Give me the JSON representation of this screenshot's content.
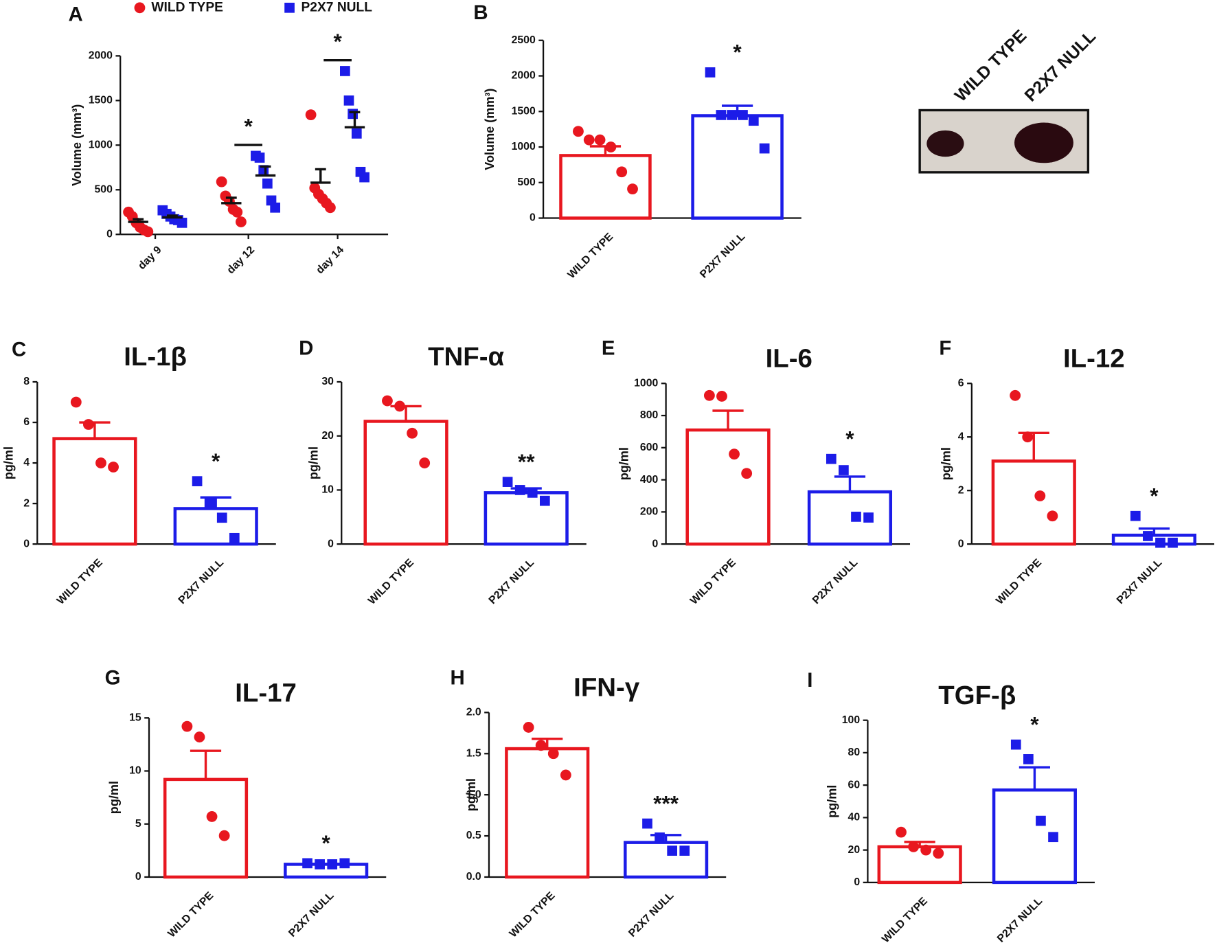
{
  "chart_data": [
    {
      "type": "dot",
      "panel": "A",
      "y_label": "Volume (mm³)",
      "categories": [
        "day 9",
        "day 12",
        "day 14"
      ],
      "ylim": [
        0,
        2000
      ],
      "yticks": [
        0,
        500,
        1000,
        1500,
        2000
      ],
      "significance": [
        null,
        "*",
        "*"
      ],
      "series": [
        {
          "name": "WILD TYPE",
          "color": "#e8171f",
          "marker": "circle",
          "points": [
            [
              250,
              200,
              130,
              80,
              50,
              30
            ],
            [
              590,
              430,
              370,
              280,
              250,
              140
            ],
            [
              1340,
              520,
              450,
              400,
              350,
              300
            ]
          ],
          "means": [
            140,
            350,
            580
          ],
          "sems": [
            30,
            60,
            150
          ]
        },
        {
          "name": "P2X7 NULL",
          "color": "#1c1ce8",
          "marker": "square",
          "points": [
            [
              270,
              230,
              200,
              170,
              160,
              130
            ],
            [
              880,
              860,
              720,
              570,
              380,
              300
            ],
            [
              1830,
              1500,
              1350,
              1130,
              700,
              640
            ]
          ],
          "means": [
            190,
            660,
            1200
          ],
          "sems": [
            20,
            100,
            170
          ]
        }
      ]
    },
    {
      "type": "bar",
      "panel": "B",
      "y_label": "Volume (mm³)",
      "ylim": [
        0,
        2500
      ],
      "yticks": [
        0,
        500,
        1000,
        1500,
        2000,
        2500
      ],
      "significance": [
        null,
        "*"
      ],
      "groups": [
        {
          "name": "WILD TYPE",
          "color": "#e8171f",
          "marker": "circle",
          "points": [
            1220,
            1100,
            1100,
            1000,
            650,
            410
          ],
          "mean": 880,
          "sem": 130
        },
        {
          "name": "P2X7 NULL",
          "color": "#1c1ce8",
          "marker": "square",
          "points": [
            2050,
            1450,
            1450,
            1450,
            1370,
            980
          ],
          "mean": 1440,
          "sem": 140
        }
      ]
    },
    {
      "type": "bar",
      "panel": "C",
      "title": "IL-1β",
      "y_label": "pg/ml",
      "ylim": [
        0,
        8
      ],
      "yticks": [
        0,
        2,
        4,
        6,
        8
      ],
      "significance": [
        null,
        "*"
      ],
      "groups": [
        {
          "name": "WILD TYPE",
          "color": "#e8171f",
          "marker": "circle",
          "points": [
            7.0,
            5.9,
            4.0,
            3.8
          ],
          "mean": 5.2,
          "sem": 0.8
        },
        {
          "name": "P2X7 NULL",
          "color": "#1c1ce8",
          "marker": "square",
          "points": [
            3.1,
            2.0,
            1.3,
            0.3
          ],
          "mean": 1.75,
          "sem": 0.55
        }
      ]
    },
    {
      "type": "bar",
      "panel": "D",
      "title": "TNF-α",
      "y_label": "pg/ml",
      "ylim": [
        0,
        30
      ],
      "yticks": [
        0,
        10,
        20,
        30
      ],
      "significance": [
        null,
        "**"
      ],
      "groups": [
        {
          "name": "WILD TYPE",
          "color": "#e8171f",
          "marker": "circle",
          "points": [
            26.5,
            25.5,
            20.5,
            15
          ],
          "mean": 22.7,
          "sem": 2.8
        },
        {
          "name": "P2X7 NULL",
          "color": "#1c1ce8",
          "marker": "square",
          "points": [
            11.5,
            10,
            9.5,
            8
          ],
          "mean": 9.5,
          "sem": 0.8
        }
      ]
    },
    {
      "type": "bar",
      "panel": "E",
      "title": "IL-6",
      "y_label": "pg/ml",
      "ylim": [
        0,
        1000
      ],
      "yticks": [
        0,
        200,
        400,
        600,
        800,
        1000
      ],
      "significance": [
        null,
        "*"
      ],
      "groups": [
        {
          "name": "WILD TYPE",
          "color": "#e8171f",
          "marker": "circle",
          "points": [
            925,
            920,
            560,
            440
          ],
          "mean": 710,
          "sem": 120
        },
        {
          "name": "P2X7 NULL",
          "color": "#1c1ce8",
          "marker": "square",
          "points": [
            530,
            460,
            170,
            165
          ],
          "mean": 325,
          "sem": 95
        }
      ]
    },
    {
      "type": "bar",
      "panel": "F",
      "title": "IL-12",
      "y_label": "pg/ml",
      "ylim": [
        0,
        6
      ],
      "yticks": [
        0,
        2,
        4,
        6
      ],
      "significance": [
        null,
        "*"
      ],
      "groups": [
        {
          "name": "WILD TYPE",
          "color": "#e8171f",
          "marker": "circle",
          "points": [
            5.55,
            4.0,
            1.8,
            1.05
          ],
          "mean": 3.1,
          "sem": 1.05
        },
        {
          "name": "P2X7 NULL",
          "color": "#1c1ce8",
          "marker": "square",
          "points": [
            1.05,
            0.3,
            0.05,
            0.05
          ],
          "mean": 0.33,
          "sem": 0.25
        }
      ]
    },
    {
      "type": "bar",
      "panel": "G",
      "title": "IL-17",
      "y_label": "pg/ml",
      "ylim": [
        0,
        15
      ],
      "yticks": [
        0,
        5,
        10,
        15
      ],
      "significance": [
        null,
        "*"
      ],
      "groups": [
        {
          "name": "WILD TYPE",
          "color": "#e8171f",
          "marker": "circle",
          "points": [
            14.2,
            13.2,
            5.7,
            3.9
          ],
          "mean": 9.2,
          "sem": 2.7
        },
        {
          "name": "P2X7 NULL",
          "color": "#1c1ce8",
          "marker": "square",
          "points": [
            1.3,
            1.2,
            1.2,
            1.3
          ],
          "mean": 1.2,
          "sem": 0.05
        }
      ]
    },
    {
      "type": "bar",
      "panel": "H",
      "title": "IFN-γ",
      "y_label": "pg/ml",
      "ylim": [
        0,
        2
      ],
      "yticks": [
        {
          "value": 0,
          "label": "0.0"
        },
        0.5,
        {
          "value": 1,
          "label": "1.0"
        },
        1.5,
        {
          "value": 2,
          "label": "2.0"
        }
      ],
      "significance": [
        null,
        "***"
      ],
      "groups": [
        {
          "name": "WILD TYPE",
          "color": "#e8171f",
          "marker": "circle",
          "points": [
            1.82,
            1.6,
            1.5,
            1.24
          ],
          "mean": 1.56,
          "sem": 0.12
        },
        {
          "name": "P2X7 NULL",
          "color": "#1c1ce8",
          "marker": "square",
          "points": [
            0.65,
            0.48,
            0.32,
            0.32
          ],
          "mean": 0.42,
          "sem": 0.09
        }
      ]
    },
    {
      "type": "bar",
      "panel": "I",
      "title": "TGF-β",
      "y_label": "pg/ml",
      "ylim": [
        0,
        100
      ],
      "yticks": [
        0,
        20,
        40,
        60,
        80,
        100
      ],
      "significance": [
        null,
        "*"
      ],
      "groups": [
        {
          "name": "WILD TYPE",
          "color": "#e8171f",
          "marker": "circle",
          "points": [
            31,
            22,
            20,
            18
          ],
          "mean": 22,
          "sem": 3
        },
        {
          "name": "P2X7 NULL",
          "color": "#1c1ce8",
          "marker": "square",
          "points": [
            85,
            76,
            38,
            28
          ],
          "mean": 57,
          "sem": 14
        }
      ]
    }
  ],
  "photo": {
    "labels": [
      "WILD TYPE",
      "P2X7 NULL"
    ]
  }
}
